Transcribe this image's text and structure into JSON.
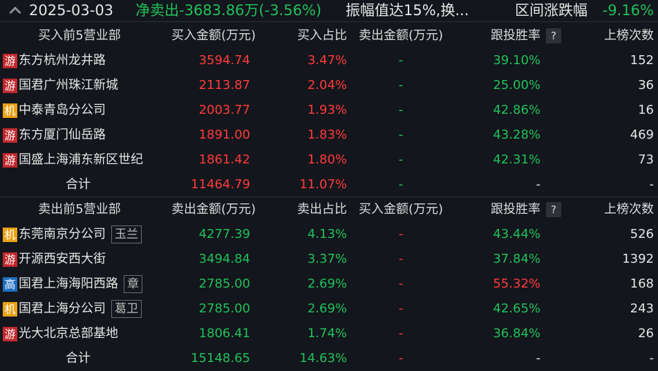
{
  "header": {
    "date": "2025-03-03",
    "net": "净卖出-3683.86万(-3.56%)",
    "reason": "振幅值达15%,换...",
    "range_label": "区间涨跌幅",
    "range_value": "-9.16%"
  },
  "colors": {
    "游": "#c0282d",
    "机": "#e8a317",
    "高": "#1e6fc0",
    "up": "#ff3b3b",
    "down": "#1fc15a"
  },
  "buy": {
    "columns": [
      "买入前5营业部",
      "买入金额(万元)",
      "买入占比",
      "卖出金额(万元)",
      "跟投胜率",
      "上榜次数"
    ],
    "help": "?",
    "rows": [
      {
        "tag": "游",
        "name": "东方杭州龙井路",
        "seat": "",
        "amt": "3594.74",
        "ratio": "3.47%",
        "other": "-",
        "win": "39.10%",
        "count": "152"
      },
      {
        "tag": "游",
        "name": "国君广州珠江新城",
        "seat": "",
        "amt": "2113.87",
        "ratio": "2.04%",
        "other": "-",
        "win": "25.00%",
        "count": "36"
      },
      {
        "tag": "机",
        "name": "中泰青岛分公司",
        "seat": "",
        "amt": "2003.77",
        "ratio": "1.93%",
        "other": "-",
        "win": "42.86%",
        "count": "16"
      },
      {
        "tag": "游",
        "name": "东方厦门仙岳路",
        "seat": "",
        "amt": "1891.00",
        "ratio": "1.83%",
        "other": "-",
        "win": "43.28%",
        "count": "469"
      },
      {
        "tag": "游",
        "name": "国盛上海浦东新区世纪",
        "seat": "",
        "amt": "1861.42",
        "ratio": "1.80%",
        "other": "-",
        "win": "42.31%",
        "count": "73"
      }
    ],
    "total": {
      "label": "合计",
      "amt": "11464.79",
      "ratio": "11.07%",
      "other": "-",
      "win": "-",
      "count": "-"
    }
  },
  "sell": {
    "columns": [
      "卖出前5营业部",
      "卖出金额(万元)",
      "卖出占比",
      "买入金额(万元)",
      "跟投胜率",
      "上榜次数"
    ],
    "help": "?",
    "rows": [
      {
        "tag": "机",
        "name": "东莞南京分公司",
        "seat": "玉兰",
        "amt": "4277.39",
        "ratio": "4.13%",
        "other": "-",
        "win": "43.44%",
        "count": "526"
      },
      {
        "tag": "游",
        "name": "开源西安西大街",
        "seat": "",
        "amt": "3494.84",
        "ratio": "3.37%",
        "other": "-",
        "win": "37.84%",
        "count": "1392"
      },
      {
        "tag": "高",
        "name": "国君上海海阳西路",
        "seat": "章",
        "amt": "2785.00",
        "ratio": "2.69%",
        "other": "-",
        "win": "55.32%",
        "count": "168"
      },
      {
        "tag": "机",
        "name": "国君上海分公司",
        "seat": "葛卫",
        "amt": "2785.00",
        "ratio": "2.69%",
        "other": "-",
        "win": "42.65%",
        "count": "243"
      },
      {
        "tag": "游",
        "name": "光大北京总部基地",
        "seat": "",
        "amt": "1806.41",
        "ratio": "1.74%",
        "other": "-",
        "win": "36.84%",
        "count": "26"
      }
    ],
    "total": {
      "label": "合计",
      "amt": "15148.65",
      "ratio": "14.63%",
      "other": "-",
      "win": "-",
      "count": "-"
    }
  }
}
